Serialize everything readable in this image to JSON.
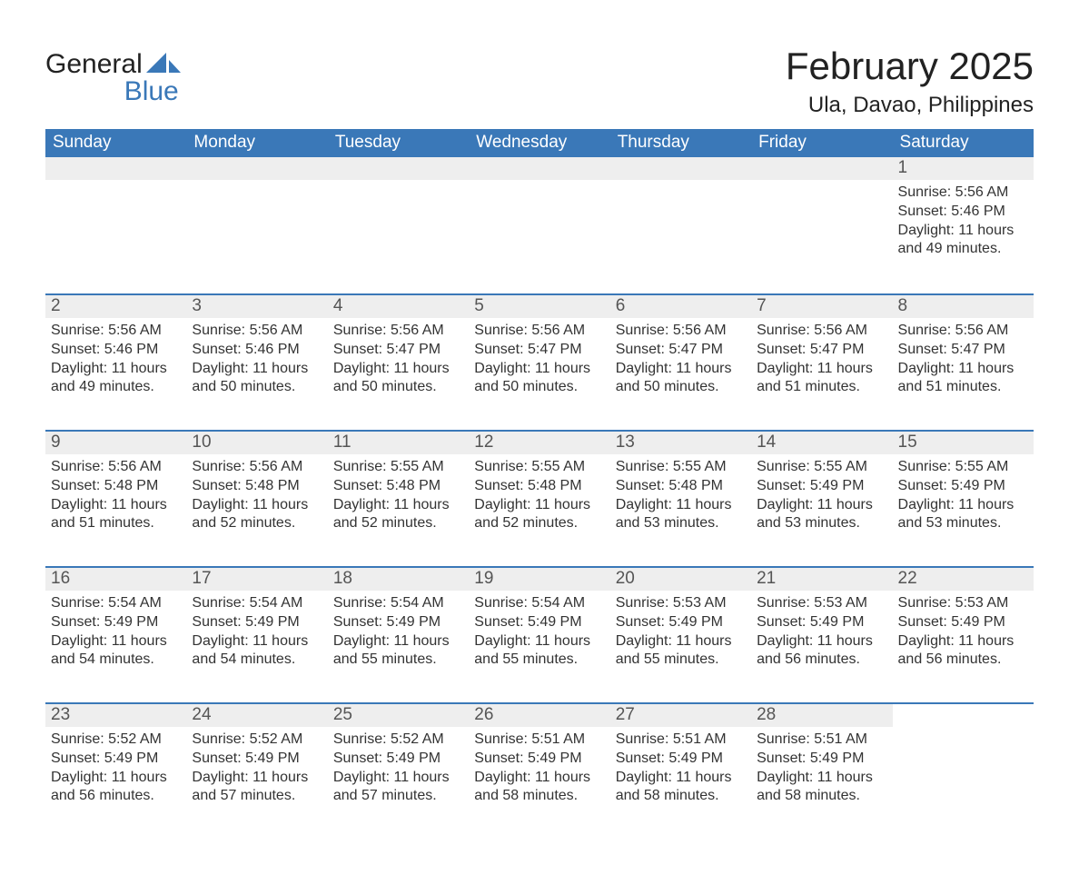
{
  "logo": {
    "text1": "General",
    "text2": "Blue"
  },
  "header": {
    "month_title": "February 2025",
    "location": "Ula, Davao, Philippines"
  },
  "colors": {
    "brand_blue": "#3a78b8",
    "header_text": "#ffffff",
    "daynum_bg": "#eeeeee",
    "daynum_text": "#555555",
    "body_text": "#333333",
    "page_bg": "#ffffff"
  },
  "typography": {
    "title_fontsize": 42,
    "location_fontsize": 24,
    "dayheader_fontsize": 19,
    "daynum_fontsize": 19,
    "cell_fontsize": 16,
    "font_family": "Arial"
  },
  "day_headers": [
    "Sunday",
    "Monday",
    "Tuesday",
    "Wednesday",
    "Thursday",
    "Friday",
    "Saturday"
  ],
  "weeks": [
    [
      {
        "empty": true
      },
      {
        "empty": true
      },
      {
        "empty": true
      },
      {
        "empty": true
      },
      {
        "empty": true
      },
      {
        "empty": true
      },
      {
        "day": "1",
        "sunrise": "Sunrise: 5:56 AM",
        "sunset": "Sunset: 5:46 PM",
        "daylight1": "Daylight: 11 hours",
        "daylight2": "and 49 minutes."
      }
    ],
    [
      {
        "day": "2",
        "sunrise": "Sunrise: 5:56 AM",
        "sunset": "Sunset: 5:46 PM",
        "daylight1": "Daylight: 11 hours",
        "daylight2": "and 49 minutes."
      },
      {
        "day": "3",
        "sunrise": "Sunrise: 5:56 AM",
        "sunset": "Sunset: 5:46 PM",
        "daylight1": "Daylight: 11 hours",
        "daylight2": "and 50 minutes."
      },
      {
        "day": "4",
        "sunrise": "Sunrise: 5:56 AM",
        "sunset": "Sunset: 5:47 PM",
        "daylight1": "Daylight: 11 hours",
        "daylight2": "and 50 minutes."
      },
      {
        "day": "5",
        "sunrise": "Sunrise: 5:56 AM",
        "sunset": "Sunset: 5:47 PM",
        "daylight1": "Daylight: 11 hours",
        "daylight2": "and 50 minutes."
      },
      {
        "day": "6",
        "sunrise": "Sunrise: 5:56 AM",
        "sunset": "Sunset: 5:47 PM",
        "daylight1": "Daylight: 11 hours",
        "daylight2": "and 50 minutes."
      },
      {
        "day": "7",
        "sunrise": "Sunrise: 5:56 AM",
        "sunset": "Sunset: 5:47 PM",
        "daylight1": "Daylight: 11 hours",
        "daylight2": "and 51 minutes."
      },
      {
        "day": "8",
        "sunrise": "Sunrise: 5:56 AM",
        "sunset": "Sunset: 5:47 PM",
        "daylight1": "Daylight: 11 hours",
        "daylight2": "and 51 minutes."
      }
    ],
    [
      {
        "day": "9",
        "sunrise": "Sunrise: 5:56 AM",
        "sunset": "Sunset: 5:48 PM",
        "daylight1": "Daylight: 11 hours",
        "daylight2": "and 51 minutes."
      },
      {
        "day": "10",
        "sunrise": "Sunrise: 5:56 AM",
        "sunset": "Sunset: 5:48 PM",
        "daylight1": "Daylight: 11 hours",
        "daylight2": "and 52 minutes."
      },
      {
        "day": "11",
        "sunrise": "Sunrise: 5:55 AM",
        "sunset": "Sunset: 5:48 PM",
        "daylight1": "Daylight: 11 hours",
        "daylight2": "and 52 minutes."
      },
      {
        "day": "12",
        "sunrise": "Sunrise: 5:55 AM",
        "sunset": "Sunset: 5:48 PM",
        "daylight1": "Daylight: 11 hours",
        "daylight2": "and 52 minutes."
      },
      {
        "day": "13",
        "sunrise": "Sunrise: 5:55 AM",
        "sunset": "Sunset: 5:48 PM",
        "daylight1": "Daylight: 11 hours",
        "daylight2": "and 53 minutes."
      },
      {
        "day": "14",
        "sunrise": "Sunrise: 5:55 AM",
        "sunset": "Sunset: 5:49 PM",
        "daylight1": "Daylight: 11 hours",
        "daylight2": "and 53 minutes."
      },
      {
        "day": "15",
        "sunrise": "Sunrise: 5:55 AM",
        "sunset": "Sunset: 5:49 PM",
        "daylight1": "Daylight: 11 hours",
        "daylight2": "and 53 minutes."
      }
    ],
    [
      {
        "day": "16",
        "sunrise": "Sunrise: 5:54 AM",
        "sunset": "Sunset: 5:49 PM",
        "daylight1": "Daylight: 11 hours",
        "daylight2": "and 54 minutes."
      },
      {
        "day": "17",
        "sunrise": "Sunrise: 5:54 AM",
        "sunset": "Sunset: 5:49 PM",
        "daylight1": "Daylight: 11 hours",
        "daylight2": "and 54 minutes."
      },
      {
        "day": "18",
        "sunrise": "Sunrise: 5:54 AM",
        "sunset": "Sunset: 5:49 PM",
        "daylight1": "Daylight: 11 hours",
        "daylight2": "and 55 minutes."
      },
      {
        "day": "19",
        "sunrise": "Sunrise: 5:54 AM",
        "sunset": "Sunset: 5:49 PM",
        "daylight1": "Daylight: 11 hours",
        "daylight2": "and 55 minutes."
      },
      {
        "day": "20",
        "sunrise": "Sunrise: 5:53 AM",
        "sunset": "Sunset: 5:49 PM",
        "daylight1": "Daylight: 11 hours",
        "daylight2": "and 55 minutes."
      },
      {
        "day": "21",
        "sunrise": "Sunrise: 5:53 AM",
        "sunset": "Sunset: 5:49 PM",
        "daylight1": "Daylight: 11 hours",
        "daylight2": "and 56 minutes."
      },
      {
        "day": "22",
        "sunrise": "Sunrise: 5:53 AM",
        "sunset": "Sunset: 5:49 PM",
        "daylight1": "Daylight: 11 hours",
        "daylight2": "and 56 minutes."
      }
    ],
    [
      {
        "day": "23",
        "sunrise": "Sunrise: 5:52 AM",
        "sunset": "Sunset: 5:49 PM",
        "daylight1": "Daylight: 11 hours",
        "daylight2": "and 56 minutes."
      },
      {
        "day": "24",
        "sunrise": "Sunrise: 5:52 AM",
        "sunset": "Sunset: 5:49 PM",
        "daylight1": "Daylight: 11 hours",
        "daylight2": "and 57 minutes."
      },
      {
        "day": "25",
        "sunrise": "Sunrise: 5:52 AM",
        "sunset": "Sunset: 5:49 PM",
        "daylight1": "Daylight: 11 hours",
        "daylight2": "and 57 minutes."
      },
      {
        "day": "26",
        "sunrise": "Sunrise: 5:51 AM",
        "sunset": "Sunset: 5:49 PM",
        "daylight1": "Daylight: 11 hours",
        "daylight2": "and 58 minutes."
      },
      {
        "day": "27",
        "sunrise": "Sunrise: 5:51 AM",
        "sunset": "Sunset: 5:49 PM",
        "daylight1": "Daylight: 11 hours",
        "daylight2": "and 58 minutes."
      },
      {
        "day": "28",
        "sunrise": "Sunrise: 5:51 AM",
        "sunset": "Sunset: 5:49 PM",
        "daylight1": "Daylight: 11 hours",
        "daylight2": "and 58 minutes."
      },
      {
        "empty": true,
        "trailing": true
      }
    ]
  ]
}
